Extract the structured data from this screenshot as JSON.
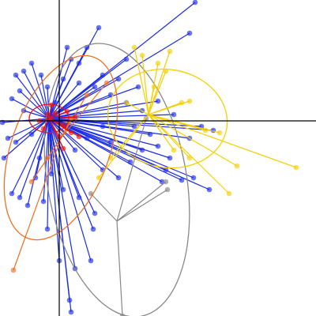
{
  "chart_data": {
    "type": "star-scatter",
    "xlim": [
      -75,
      325
    ],
    "ylim": [
      -247,
      153
    ],
    "zero_lines": true,
    "groups": [
      {
        "color": "#1a2be8",
        "center": [
          -13,
          3
        ],
        "x": [
          172,
          50,
          165,
          -55,
          -45,
          -35,
          -23,
          15,
          25,
          35,
          55,
          75,
          85,
          100,
          65,
          125,
          145,
          180,
          195,
          165,
          140,
          155,
          170,
          190,
          135,
          105,
          90,
          75,
          55,
          43,
          40,
          20,
          15,
          13,
          0,
          -15,
          -40,
          -50,
          -60,
          -70,
          -65,
          -55,
          -72,
          -60,
          -50,
          -30,
          -20,
          -10,
          5,
          25,
          45,
          65,
          95,
          115,
          125,
          130,
          105,
          85,
          45,
          25,
          5,
          -15,
          -45,
          -35,
          -25,
          20,
          35,
          55,
          10,
          -5
        ],
        "y": [
          150,
          118,
          111,
          58,
          63,
          73,
          58,
          78,
          73,
          93,
          58,
          53,
          78,
          43,
          33,
          25,
          8,
          -7,
          -12,
          -22,
          -47,
          -75,
          -72,
          -87,
          -62,
          -37,
          -52,
          -72,
          -62,
          -137,
          -177,
          -187,
          -242,
          -227,
          -177,
          -137,
          -107,
          -97,
          -92,
          -47,
          -22,
          -27,
          -2,
          28,
          38,
          -72,
          -102,
          -67,
          -87,
          -97,
          -117,
          -27,
          -7,
          -17,
          -32,
          -77,
          13,
          23,
          43,
          48,
          53,
          43,
          13,
          -17,
          -47,
          -37,
          -22,
          -7,
          93,
          23
        ]
      },
      {
        "color": "#888888",
        "center": [
          73,
          -127
        ],
        "x": [
          137,
          135,
          110,
          40,
          80
        ],
        "y": [
          -87,
          -77,
          3,
          -92,
          -247
        ],
        "ellipse": {
          "cx": 73,
          "cy": -75,
          "rx": 175,
          "ry": 88,
          "angle": 100
        }
      },
      {
        "color": "#f5d000",
        "center": [
          113,
          8
        ],
        "x": [
          140,
          135,
          125,
          165,
          155,
          185,
          203,
          225,
          300,
          215,
          165,
          145,
          50,
          65,
          85,
          120,
          105,
          95
        ],
        "y": [
          88,
          63,
          73,
          25,
          23,
          -12,
          -15,
          -57,
          -59,
          -92,
          -47,
          -37,
          -72,
          -47,
          23,
          43,
          83,
          93
        ],
        "ellipse": {
          "cx": 137,
          "cy": 3,
          "rx": 76,
          "ry": 62,
          "angle": -10
        }
      },
      {
        "color": "#f07020",
        "center": [
          2,
          -22
        ],
        "x": [
          -58,
          -35,
          35,
          -15,
          15,
          60
        ],
        "y": [
          -189,
          -77,
          33,
          -47,
          3,
          48
        ],
        "ellipse": {
          "cx": 2,
          "cy": -34,
          "rx": 122,
          "ry": 62,
          "angle": 70
        }
      },
      {
        "color": "#ee1111",
        "center": [
          -13,
          3
        ],
        "x": [
          -5,
          5,
          -15,
          10,
          -20,
          0,
          15,
          -10,
          20,
          -25,
          5,
          25
        ],
        "y": [
          10,
          -5,
          8,
          12,
          -10,
          -20,
          -15,
          20,
          5,
          0,
          -35,
          -20
        ],
        "ellipse": {
          "cx": -13,
          "cy": 3,
          "rx": 25,
          "ry": 18,
          "angle": 0
        }
      }
    ]
  }
}
